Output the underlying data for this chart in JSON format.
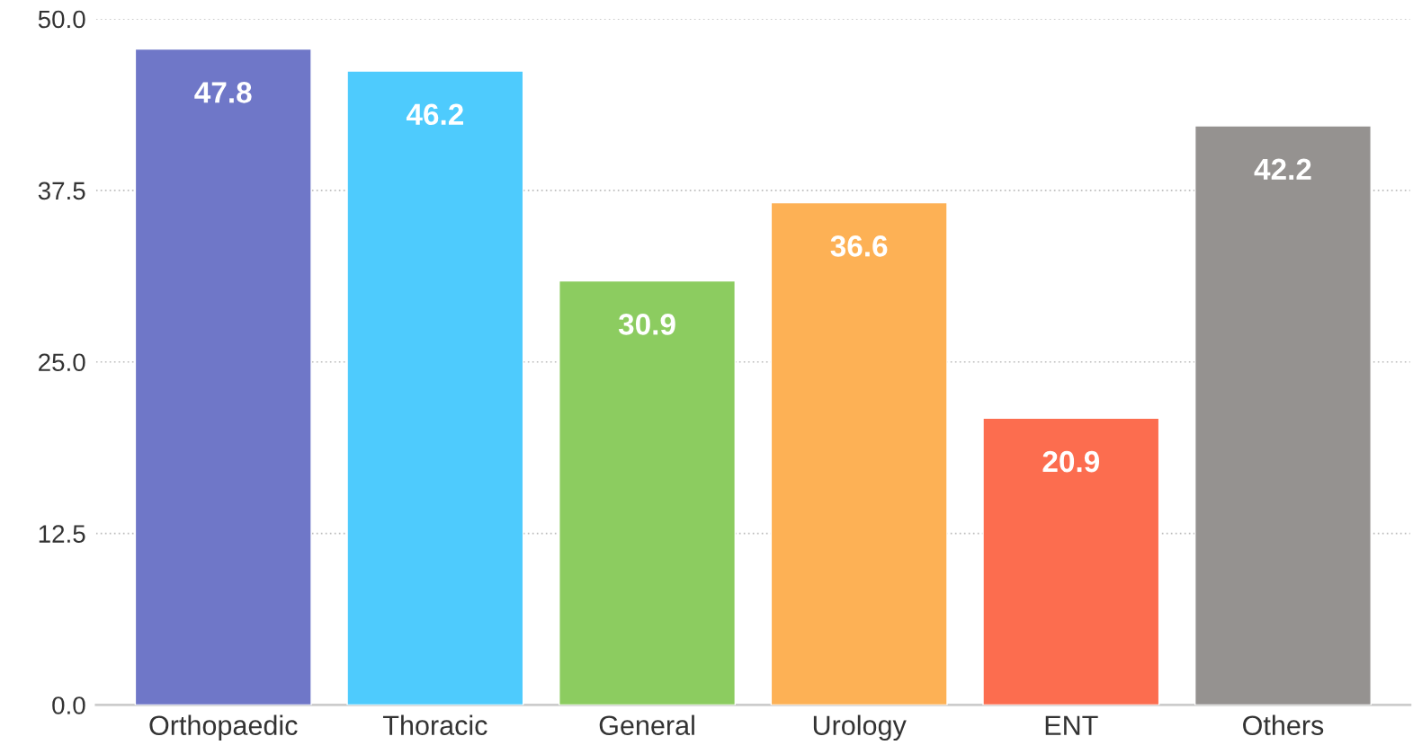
{
  "chart_data": {
    "type": "bar",
    "categories": [
      "Orthopaedic",
      "Thoracic",
      "General",
      "Urology",
      "ENT",
      "Others"
    ],
    "values": [
      47.8,
      46.2,
      30.9,
      36.6,
      20.9,
      42.2
    ],
    "colors": [
      "#6f77c8",
      "#4ecbfd",
      "#8ccc60",
      "#fdb155",
      "#fc6d4f",
      "#959290"
    ],
    "ylim": [
      0,
      50
    ],
    "yticks": [
      {
        "value": 0,
        "label": "0.0"
      },
      12.5,
      {
        "value": 25,
        "label": "25.0"
      },
      37.5,
      {
        "value": 50,
        "label": "50.0"
      }
    ],
    "grid": "y",
    "data_labels": true
  }
}
